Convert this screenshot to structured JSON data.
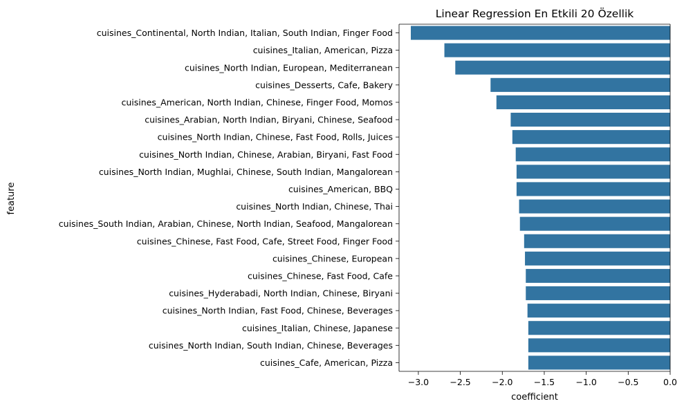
{
  "chart_data": {
    "type": "bar",
    "orientation": "horizontal",
    "title": "Linear Regression En Etkili 20 Özellik",
    "xlabel": "coefficient",
    "ylabel": "feature",
    "xlim": [
      -3.23,
      0.0
    ],
    "xticks": [
      -3.0,
      -2.5,
      -2.0,
      -1.5,
      -1.0,
      -0.5,
      0.0
    ],
    "xtick_labels": [
      "−3.0",
      "−2.5",
      "−2.0",
      "−1.5",
      "−1.0",
      "−0.5",
      "0.0"
    ],
    "grid": false,
    "bar_color": "#3274a1",
    "categories": [
      "cuisines_Continental, North Indian, Italian, South Indian, Finger Food",
      "cuisines_Italian, American, Pizza",
      "cuisines_North Indian, European, Mediterranean",
      "cuisines_Desserts, Cafe, Bakery",
      "cuisines_American, North Indian, Chinese, Finger Food, Momos",
      "cuisines_Arabian, North Indian, Biryani, Chinese, Seafood",
      "cuisines_North Indian, Chinese, Fast Food, Rolls, Juices",
      "cuisines_North Indian, Chinese, Arabian, Biryani, Fast Food",
      "cuisines_North Indian, Mughlai, Chinese, South Indian, Mangalorean",
      "cuisines_American, BBQ",
      "cuisines_North Indian, Chinese, Thai",
      "cuisines_South Indian, Arabian, Chinese, North Indian, Seafood, Mangalorean",
      "cuisines_Chinese, Fast Food, Cafe, Street Food, Finger Food",
      "cuisines_Chinese, European",
      "cuisines_Chinese, Fast Food, Cafe",
      "cuisines_Hyderabadi, North Indian, Chinese, Biryani",
      "cuisines_North Indian, Fast Food, Chinese, Beverages",
      "cuisines_Italian, Chinese, Japanese",
      "cuisines_North Indian, South Indian, Chinese, Beverages",
      "cuisines_Cafe, American, Pizza"
    ],
    "values": [
      -3.09,
      -2.69,
      -2.56,
      -2.14,
      -2.07,
      -1.9,
      -1.88,
      -1.84,
      -1.83,
      -1.83,
      -1.8,
      -1.79,
      -1.74,
      -1.73,
      -1.72,
      -1.72,
      -1.7,
      -1.69,
      -1.69,
      -1.69
    ]
  }
}
